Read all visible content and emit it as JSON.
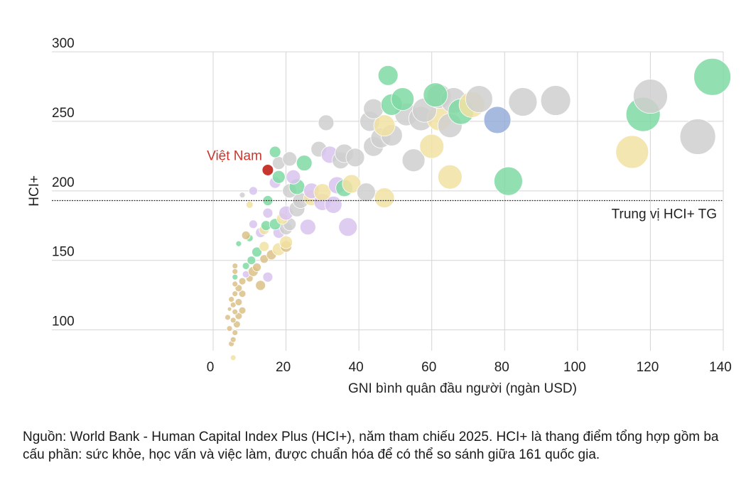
{
  "chart_data": {
    "type": "scatter",
    "title": "",
    "xlabel": "GNI bình quân đầu người (ngàn USD)",
    "ylabel": "HCI+",
    "xlim": [
      0,
      140
    ],
    "ylim": [
      85,
      300
    ],
    "x_ticks": [
      0,
      20,
      40,
      60,
      80,
      100,
      120,
      140
    ],
    "y_ticks": [
      100,
      150,
      200,
      250,
      300
    ],
    "grid": true,
    "median_line": {
      "y": 193,
      "label": "Trung vị HCI+ TG"
    },
    "highlight": {
      "label": "Việt Nam",
      "x": 15,
      "y": 215,
      "color": "#c8372d"
    },
    "colors": {
      "gold": "#dcc188",
      "yellow": "#f2e2a2",
      "purple": "#d8c3ef",
      "green": "#7fd9a3",
      "gray": "#cfcfcf",
      "blue": "#97add9",
      "vietnam": "#c8372d"
    },
    "points": [
      {
        "x": 5.5,
        "y": 80,
        "s": 4,
        "c": "yellow"
      },
      {
        "x": 5,
        "y": 90,
        "s": 4,
        "c": "gold"
      },
      {
        "x": 5.5,
        "y": 93,
        "s": 4,
        "c": "gold"
      },
      {
        "x": 6,
        "y": 98,
        "s": 4,
        "c": "gold"
      },
      {
        "x": 4.5,
        "y": 101,
        "s": 4,
        "c": "gold"
      },
      {
        "x": 6.5,
        "y": 104,
        "s": 5,
        "c": "gold"
      },
      {
        "x": 5.5,
        "y": 107,
        "s": 4,
        "c": "gold"
      },
      {
        "x": 4,
        "y": 109,
        "s": 4,
        "c": "gold"
      },
      {
        "x": 7,
        "y": 110,
        "s": 5,
        "c": "gold"
      },
      {
        "x": 6,
        "y": 113,
        "s": 4,
        "c": "gold"
      },
      {
        "x": 4.5,
        "y": 115,
        "s": 3,
        "c": "gold"
      },
      {
        "x": 8,
        "y": 114,
        "s": 5,
        "c": "gold"
      },
      {
        "x": 5.5,
        "y": 118,
        "s": 4,
        "c": "gold"
      },
      {
        "x": 7,
        "y": 120,
        "s": 5,
        "c": "gold"
      },
      {
        "x": 5,
        "y": 122,
        "s": 4,
        "c": "gold"
      },
      {
        "x": 6,
        "y": 126,
        "s": 4,
        "c": "gold"
      },
      {
        "x": 8,
        "y": 126,
        "s": 5,
        "c": "gold"
      },
      {
        "x": 7,
        "y": 130,
        "s": 5,
        "c": "gold"
      },
      {
        "x": 6,
        "y": 133,
        "s": 4,
        "c": "gold"
      },
      {
        "x": 8,
        "y": 135,
        "s": 5,
        "c": "gold"
      },
      {
        "x": 10,
        "y": 137,
        "s": 5,
        "c": "gold"
      },
      {
        "x": 6,
        "y": 138,
        "s": 4,
        "c": "green"
      },
      {
        "x": 9,
        "y": 140,
        "s": 5,
        "c": "purple"
      },
      {
        "x": 6,
        "y": 142,
        "s": 4,
        "c": "gold"
      },
      {
        "x": 11,
        "y": 142,
        "s": 7,
        "c": "gold"
      },
      {
        "x": 9,
        "y": 146,
        "s": 5,
        "c": "green"
      },
      {
        "x": 6,
        "y": 146,
        "s": 4,
        "c": "gold"
      },
      {
        "x": 13,
        "y": 132,
        "s": 7,
        "c": "gold"
      },
      {
        "x": 12,
        "y": 145,
        "s": 6,
        "c": "gold"
      },
      {
        "x": 15,
        "y": 138,
        "s": 7,
        "c": "purple"
      },
      {
        "x": 10.5,
        "y": 150,
        "s": 6,
        "c": "green"
      },
      {
        "x": 14,
        "y": 151,
        "s": 6,
        "c": "gold"
      },
      {
        "x": 12,
        "y": 156,
        "s": 7,
        "c": "green"
      },
      {
        "x": 16,
        "y": 154,
        "s": 7,
        "c": "gold"
      },
      {
        "x": 18,
        "y": 158,
        "s": 9,
        "c": "yellow"
      },
      {
        "x": 20,
        "y": 160,
        "s": 8,
        "c": "gold"
      },
      {
        "x": 14,
        "y": 160,
        "s": 7,
        "c": "yellow"
      },
      {
        "x": 20,
        "y": 163,
        "s": 9,
        "c": "yellow"
      },
      {
        "x": 7,
        "y": 162,
        "s": 4,
        "c": "green"
      },
      {
        "x": 10,
        "y": 166,
        "s": 5,
        "c": "green"
      },
      {
        "x": 9,
        "y": 168,
        "s": 6,
        "c": "gold"
      },
      {
        "x": 13,
        "y": 170,
        "s": 7,
        "c": "purple"
      },
      {
        "x": 14,
        "y": 172,
        "s": 7,
        "c": "yellow"
      },
      {
        "x": 18,
        "y": 170,
        "s": 8,
        "c": "purple"
      },
      {
        "x": 20,
        "y": 173,
        "s": 9,
        "c": "gray"
      },
      {
        "x": 14.5,
        "y": 175,
        "s": 7,
        "c": "green"
      },
      {
        "x": 11,
        "y": 176,
        "s": 6,
        "c": "purple"
      },
      {
        "x": 17,
        "y": 176,
        "s": 8,
        "c": "green"
      },
      {
        "x": 21,
        "y": 176,
        "s": 9,
        "c": "gray"
      },
      {
        "x": 26,
        "y": 174,
        "s": 11,
        "c": "purple"
      },
      {
        "x": 37,
        "y": 174,
        "s": 13,
        "c": "purple"
      },
      {
        "x": 19,
        "y": 180,
        "s": 8,
        "c": "yellow"
      },
      {
        "x": 15,
        "y": 184,
        "s": 7,
        "c": "purple"
      },
      {
        "x": 20,
        "y": 184,
        "s": 10,
        "c": "purple"
      },
      {
        "x": 23,
        "y": 187,
        "s": 11,
        "c": "gray"
      },
      {
        "x": 10,
        "y": 190,
        "s": 5,
        "c": "yellow"
      },
      {
        "x": 15,
        "y": 193,
        "s": 7,
        "c": "green"
      },
      {
        "x": 24,
        "y": 193,
        "s": 11,
        "c": "gray"
      },
      {
        "x": 27,
        "y": 195,
        "s": 11,
        "c": "yellow"
      },
      {
        "x": 30,
        "y": 192,
        "s": 12,
        "c": "purple"
      },
      {
        "x": 33,
        "y": 190,
        "s": 12,
        "c": "purple"
      },
      {
        "x": 8,
        "y": 197,
        "s": 4,
        "c": "gray"
      },
      {
        "x": 11,
        "y": 200,
        "s": 6,
        "c": "purple"
      },
      {
        "x": 21,
        "y": 200,
        "s": 10,
        "c": "gray"
      },
      {
        "x": 23,
        "y": 203,
        "s": 11,
        "c": "green"
      },
      {
        "x": 27,
        "y": 200,
        "s": 11,
        "c": "purple"
      },
      {
        "x": 30,
        "y": 199,
        "s": 12,
        "c": "yellow"
      },
      {
        "x": 34,
        "y": 204,
        "s": 12,
        "c": "purple"
      },
      {
        "x": 36,
        "y": 202,
        "s": 12,
        "c": "green"
      },
      {
        "x": 38,
        "y": 205,
        "s": 13,
        "c": "yellow"
      },
      {
        "x": 42,
        "y": 199,
        "s": 13,
        "c": "gray"
      },
      {
        "x": 47,
        "y": 195,
        "s": 14,
        "c": "yellow"
      },
      {
        "x": 17,
        "y": 206,
        "s": 8,
        "c": "purple"
      },
      {
        "x": 18,
        "y": 210,
        "s": 9,
        "c": "green"
      },
      {
        "x": 22,
        "y": 210,
        "s": 10,
        "c": "purple"
      },
      {
        "x": 18,
        "y": 220,
        "s": 9,
        "c": "gray"
      },
      {
        "x": 21,
        "y": 223,
        "s": 10,
        "c": "gray"
      },
      {
        "x": 25,
        "y": 220,
        "s": 11,
        "c": "green"
      },
      {
        "x": 17,
        "y": 228,
        "s": 8,
        "c": "green"
      },
      {
        "x": 29,
        "y": 230,
        "s": 11,
        "c": "gray"
      },
      {
        "x": 32,
        "y": 226,
        "s": 12,
        "c": "purple"
      },
      {
        "x": 35,
        "y": 222,
        "s": 12,
        "c": "gray"
      },
      {
        "x": 36,
        "y": 227,
        "s": 13,
        "c": "gray"
      },
      {
        "x": 39,
        "y": 224,
        "s": 13,
        "c": "gray"
      },
      {
        "x": 44,
        "y": 232,
        "s": 14,
        "c": "gray"
      },
      {
        "x": 46,
        "y": 238,
        "s": 14,
        "c": "gray"
      },
      {
        "x": 49,
        "y": 240,
        "s": 15,
        "c": "gray"
      },
      {
        "x": 55,
        "y": 222,
        "s": 16,
        "c": "gray"
      },
      {
        "x": 31,
        "y": 249,
        "s": 11,
        "c": "gray"
      },
      {
        "x": 43,
        "y": 250,
        "s": 14,
        "c": "gray"
      },
      {
        "x": 47,
        "y": 247,
        "s": 15,
        "c": "yellow"
      },
      {
        "x": 53,
        "y": 255,
        "s": 16,
        "c": "gray"
      },
      {
        "x": 57,
        "y": 252,
        "s": 17,
        "c": "gray"
      },
      {
        "x": 62,
        "y": 252,
        "s": 17,
        "c": "yellow"
      },
      {
        "x": 65,
        "y": 247,
        "s": 17,
        "c": "gray"
      },
      {
        "x": 60,
        "y": 232,
        "s": 17,
        "c": "yellow"
      },
      {
        "x": 65,
        "y": 210,
        "s": 17,
        "c": "yellow"
      },
      {
        "x": 44,
        "y": 259,
        "s": 14,
        "c": "gray"
      },
      {
        "x": 49,
        "y": 262,
        "s": 15,
        "c": "green"
      },
      {
        "x": 52,
        "y": 266,
        "s": 16,
        "c": "green"
      },
      {
        "x": 58,
        "y": 258,
        "s": 17,
        "c": "gray"
      },
      {
        "x": 62,
        "y": 268,
        "s": 17,
        "c": "gray"
      },
      {
        "x": 66,
        "y": 265,
        "s": 18,
        "c": "gray"
      },
      {
        "x": 68,
        "y": 257,
        "s": 18,
        "c": "green"
      },
      {
        "x": 71,
        "y": 262,
        "s": 18,
        "c": "yellow"
      },
      {
        "x": 73,
        "y": 266,
        "s": 19,
        "c": "gray"
      },
      {
        "x": 78,
        "y": 251,
        "s": 19,
        "c": "blue"
      },
      {
        "x": 61,
        "y": 269,
        "s": 17,
        "c": "green"
      },
      {
        "x": 48,
        "y": 283,
        "s": 14,
        "c": "green"
      },
      {
        "x": 81,
        "y": 207,
        "s": 20,
        "c": "green"
      },
      {
        "x": 85,
        "y": 264,
        "s": 20,
        "c": "gray"
      },
      {
        "x": 94,
        "y": 265,
        "s": 21,
        "c": "gray"
      },
      {
        "x": 115,
        "y": 228,
        "s": 23,
        "c": "yellow"
      },
      {
        "x": 118,
        "y": 255,
        "s": 24,
        "c": "green"
      },
      {
        "x": 120,
        "y": 268,
        "s": 24,
        "c": "gray"
      },
      {
        "x": 133,
        "y": 239,
        "s": 25,
        "c": "gray"
      },
      {
        "x": 137,
        "y": 282,
        "s": 26,
        "c": "green"
      }
    ]
  },
  "source_text": "Nguồn: World Bank - Human Capital Index Plus (HCI+), năm tham chiếu 2025. HCI+ là thang điểm tổng hợp gồm ba cấu phần: sức khỏe, học vấn và việc làm, được chuẩn hóa để có thể so sánh giữa 161 quốc gia."
}
